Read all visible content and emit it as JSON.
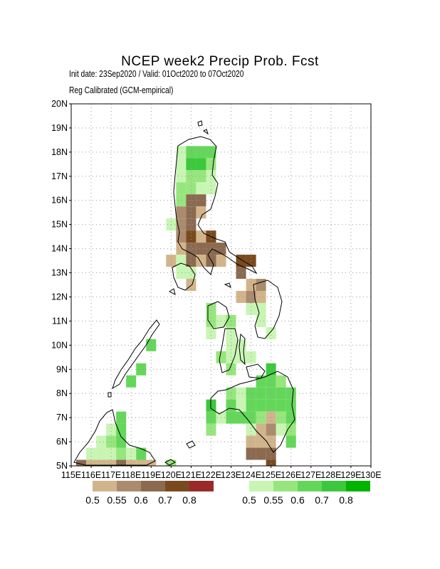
{
  "title": "NCEP week2 Precip Prob. Fcst",
  "subtitle1": "Init date: 23Sep2020 / Valid: 01Oct2020 to 07Oct2020",
  "subtitle2": "Reg Calibrated (GCM-empirical)",
  "lat_labels": [
    "20N",
    "19N",
    "18N",
    "17N",
    "16N",
    "15N",
    "14N",
    "13N",
    "12N",
    "11N",
    "10N",
    "9N",
    "8N",
    "7N",
    "6N",
    "5N"
  ],
  "lon_labels": [
    "115E",
    "116E",
    "117E",
    "118E",
    "119E",
    "120E",
    "121E",
    "122E",
    "123E",
    "124E",
    "125E",
    "126E",
    "127E",
    "128E",
    "129E",
    "130E"
  ],
  "legend_dry": {
    "colors": [
      "#d2b48c",
      "#aa8b6e",
      "#8b6a50",
      "#7a4a1e",
      "#9a2a2a"
    ],
    "labels": [
      "0.5",
      "0.55",
      "0.6",
      "0.7",
      "0.8"
    ]
  },
  "legend_wet": {
    "colors": [
      "#c8f5b4",
      "#96e67d",
      "#64d75a",
      "#3cc83c",
      "#00b400"
    ],
    "labels": [
      "0.5",
      "0.55",
      "0.6",
      "0.7",
      "0.8"
    ]
  },
  "cells": [
    {
      "lon": 120.5,
      "lat": 18.0,
      "level": "w1"
    },
    {
      "lon": 121.0,
      "lat": 18.0,
      "level": "w3"
    },
    {
      "lon": 121.5,
      "lat": 18.0,
      "level": "w3"
    },
    {
      "lon": 122.0,
      "lat": 18.0,
      "level": "w3"
    },
    {
      "lon": 120.5,
      "lat": 17.5,
      "level": "w1"
    },
    {
      "lon": 121.0,
      "lat": 17.5,
      "level": "w4"
    },
    {
      "lon": 121.5,
      "lat": 17.5,
      "level": "w4"
    },
    {
      "lon": 122.0,
      "lat": 17.5,
      "level": "w2"
    },
    {
      "lon": 120.5,
      "lat": 17.0,
      "level": "w1"
    },
    {
      "lon": 121.0,
      "lat": 17.0,
      "level": "w2"
    },
    {
      "lon": 121.5,
      "lat": 17.0,
      "level": "w2"
    },
    {
      "lon": 122.0,
      "lat": 17.0,
      "level": "w1"
    },
    {
      "lon": 120.5,
      "lat": 16.5,
      "level": "w2"
    },
    {
      "lon": 121.0,
      "lat": 16.5,
      "level": "w2"
    },
    {
      "lon": 121.5,
      "lat": 16.5,
      "level": "w1"
    },
    {
      "lon": 122.0,
      "lat": 16.5,
      "level": "w1"
    },
    {
      "lon": 120.5,
      "lat": 16.0,
      "level": "w2"
    },
    {
      "lon": 121.0,
      "lat": 16.0,
      "level": "d3"
    },
    {
      "lon": 121.5,
      "lat": 16.0,
      "level": "d3"
    },
    {
      "lon": 120.5,
      "lat": 15.5,
      "level": "d2"
    },
    {
      "lon": 121.0,
      "lat": 15.5,
      "level": "d3"
    },
    {
      "lon": 121.5,
      "lat": 15.5,
      "level": "d1"
    },
    {
      "lon": 120.0,
      "lat": 15.0,
      "level": "w1"
    },
    {
      "lon": 120.5,
      "lat": 15.0,
      "level": "d2"
    },
    {
      "lon": 121.0,
      "lat": 15.0,
      "level": "d3"
    },
    {
      "lon": 120.5,
      "lat": 14.5,
      "level": "d2"
    },
    {
      "lon": 121.0,
      "lat": 14.5,
      "level": "d4"
    },
    {
      "lon": 121.5,
      "lat": 14.5,
      "level": "d1"
    },
    {
      "lon": 122.0,
      "lat": 14.5,
      "level": "d4"
    },
    {
      "lon": 120.5,
      "lat": 14.0,
      "level": "d1"
    },
    {
      "lon": 121.0,
      "lat": 14.0,
      "level": "d3"
    },
    {
      "lon": 121.5,
      "lat": 14.0,
      "level": "d3"
    },
    {
      "lon": 122.0,
      "lat": 14.0,
      "level": "d3"
    },
    {
      "lon": 122.5,
      "lat": 14.0,
      "level": "d3"
    },
    {
      "lon": 120.0,
      "lat": 13.5,
      "level": "d1"
    },
    {
      "lon": 120.5,
      "lat": 13.5,
      "level": "w1"
    },
    {
      "lon": 121.0,
      "lat": 13.5,
      "level": "d3"
    },
    {
      "lon": 121.5,
      "lat": 13.5,
      "level": "d1"
    },
    {
      "lon": 122.0,
      "lat": 13.5,
      "level": "d3"
    },
    {
      "lon": 122.5,
      "lat": 13.5,
      "level": "d1"
    },
    {
      "lon": 123.5,
      "lat": 13.5,
      "level": "d4"
    },
    {
      "lon": 124.0,
      "lat": 13.5,
      "level": "d4"
    },
    {
      "lon": 120.5,
      "lat": 13.0,
      "level": "w1"
    },
    {
      "lon": 121.0,
      "lat": 13.0,
      "level": "w1"
    },
    {
      "lon": 123.5,
      "lat": 13.0,
      "level": "d3"
    },
    {
      "lon": 121.0,
      "lat": 12.5,
      "level": "d1"
    },
    {
      "lon": 124.0,
      "lat": 12.5,
      "level": "d1"
    },
    {
      "lon": 124.5,
      "lat": 12.5,
      "level": "d2"
    },
    {
      "lon": 123.5,
      "lat": 12.0,
      "level": "d1"
    },
    {
      "lon": 124.0,
      "lat": 12.0,
      "level": "d2"
    },
    {
      "lon": 124.5,
      "lat": 12.0,
      "level": "d1"
    },
    {
      "lon": 122.0,
      "lat": 11.5,
      "level": "w2"
    },
    {
      "lon": 124.0,
      "lat": 11.5,
      "level": "w1"
    },
    {
      "lon": 124.5,
      "lat": 11.5,
      "level": "w1"
    },
    {
      "lon": 122.0,
      "lat": 11.0,
      "level": "w2"
    },
    {
      "lon": 122.5,
      "lat": 11.0,
      "level": "w1"
    },
    {
      "lon": 123.0,
      "lat": 11.0,
      "level": "w2"
    },
    {
      "lon": 124.5,
      "lat": 11.0,
      "level": "w1"
    },
    {
      "lon": 122.0,
      "lat": 10.5,
      "level": "w1"
    },
    {
      "lon": 123.0,
      "lat": 10.5,
      "level": "w1"
    },
    {
      "lon": 125.0,
      "lat": 10.5,
      "level": "w1"
    },
    {
      "lon": 123.0,
      "lat": 10.0,
      "level": "w1"
    },
    {
      "lon": 123.5,
      "lat": 10.0,
      "level": "w1"
    },
    {
      "lon": 119.0,
      "lat": 10.0,
      "level": "w3"
    },
    {
      "lon": 122.5,
      "lat": 9.5,
      "level": "w2"
    },
    {
      "lon": 123.0,
      "lat": 9.5,
      "level": "w1"
    },
    {
      "lon": 123.5,
      "lat": 9.5,
      "level": "w1"
    },
    {
      "lon": 124.0,
      "lat": 9.5,
      "level": "w1"
    },
    {
      "lon": 118.5,
      "lat": 9.0,
      "level": "w3"
    },
    {
      "lon": 123.0,
      "lat": 9.0,
      "level": "w2"
    },
    {
      "lon": 125.0,
      "lat": 9.0,
      "level": "w4"
    },
    {
      "lon": 118.0,
      "lat": 8.5,
      "level": "w3"
    },
    {
      "lon": 124.5,
      "lat": 8.5,
      "level": "w3"
    },
    {
      "lon": 125.0,
      "lat": 8.5,
      "level": "w3"
    },
    {
      "lon": 125.5,
      "lat": 8.5,
      "level": "w2"
    },
    {
      "lon": 123.0,
      "lat": 8.0,
      "level": "w2"
    },
    {
      "lon": 123.5,
      "lat": 8.0,
      "level": "w1"
    },
    {
      "lon": 124.0,
      "lat": 8.0,
      "level": "w3"
    },
    {
      "lon": 124.5,
      "lat": 8.0,
      "level": "w3"
    },
    {
      "lon": 125.0,
      "lat": 8.0,
      "level": "w3"
    },
    {
      "lon": 125.5,
      "lat": 8.0,
      "level": "w3"
    },
    {
      "lon": 126.0,
      "lat": 8.0,
      "level": "w3"
    },
    {
      "lon": 122.0,
      "lat": 7.5,
      "level": "w4"
    },
    {
      "lon": 123.0,
      "lat": 7.5,
      "level": "w3"
    },
    {
      "lon": 123.5,
      "lat": 7.5,
      "level": "w1"
    },
    {
      "lon": 124.0,
      "lat": 7.5,
      "level": "w3"
    },
    {
      "lon": 124.5,
      "lat": 7.5,
      "level": "w3"
    },
    {
      "lon": 125.0,
      "lat": 7.5,
      "level": "w3"
    },
    {
      "lon": 125.5,
      "lat": 7.5,
      "level": "w3"
    },
    {
      "lon": 126.0,
      "lat": 7.5,
      "level": "w3"
    },
    {
      "lon": 122.0,
      "lat": 7.0,
      "level": "w3"
    },
    {
      "lon": 122.5,
      "lat": 7.0,
      "level": "w1"
    },
    {
      "lon": 123.0,
      "lat": 7.0,
      "level": "w3"
    },
    {
      "lon": 123.5,
      "lat": 7.0,
      "level": "w3"
    },
    {
      "lon": 124.0,
      "lat": 7.0,
      "level": "w3"
    },
    {
      "lon": 124.5,
      "lat": 7.0,
      "level": "w2"
    },
    {
      "lon": 125.0,
      "lat": 7.0,
      "level": "d1"
    },
    {
      "lon": 125.5,
      "lat": 7.0,
      "level": "w2"
    },
    {
      "lon": 126.0,
      "lat": 7.0,
      "level": "w3"
    },
    {
      "lon": 117.5,
      "lat": 7.0,
      "level": "w3"
    },
    {
      "lon": 122.0,
      "lat": 6.5,
      "level": "w2"
    },
    {
      "lon": 124.0,
      "lat": 6.5,
      "level": "w1"
    },
    {
      "lon": 124.5,
      "lat": 6.5,
      "level": "d1"
    },
    {
      "lon": 125.0,
      "lat": 6.5,
      "level": "d2"
    },
    {
      "lon": 125.5,
      "lat": 6.5,
      "level": "w1"
    },
    {
      "lon": 126.0,
      "lat": 6.5,
      "level": "w2"
    },
    {
      "lon": 117.0,
      "lat": 6.5,
      "level": "w1"
    },
    {
      "lon": 117.5,
      "lat": 6.5,
      "level": "w3"
    },
    {
      "lon": 124.0,
      "lat": 6.0,
      "level": "d1"
    },
    {
      "lon": 124.5,
      "lat": 6.0,
      "level": "d1"
    },
    {
      "lon": 125.0,
      "lat": 6.0,
      "level": "d1"
    },
    {
      "lon": 126.0,
      "lat": 6.0,
      "level": "w3"
    },
    {
      "lon": 116.5,
      "lat": 6.0,
      "level": "w1"
    },
    {
      "lon": 117.0,
      "lat": 6.0,
      "level": "w2"
    },
    {
      "lon": 117.5,
      "lat": 6.0,
      "level": "w3"
    },
    {
      "lon": 124.0,
      "lat": 5.5,
      "level": "d3"
    },
    {
      "lon": 124.5,
      "lat": 5.5,
      "level": "d3"
    },
    {
      "lon": 125.0,
      "lat": 5.5,
      "level": "d3"
    },
    {
      "lon": 116.0,
      "lat": 5.5,
      "level": "w1"
    },
    {
      "lon": 116.5,
      "lat": 5.5,
      "level": "w1"
    },
    {
      "lon": 117.0,
      "lat": 5.5,
      "level": "w1"
    },
    {
      "lon": 117.5,
      "lat": 5.5,
      "level": "w2"
    },
    {
      "lon": 118.0,
      "lat": 5.5,
      "level": "w1"
    },
    {
      "lon": 118.5,
      "lat": 5.5,
      "level": "w3"
    },
    {
      "lon": 125.0,
      "lat": 5.0,
      "level": "d4"
    },
    {
      "lon": 115.5,
      "lat": 5.0,
      "level": "d3"
    },
    {
      "lon": 116.0,
      "lat": 5.0,
      "level": "d1"
    },
    {
      "lon": 116.5,
      "lat": 5.0,
      "level": "d1"
    },
    {
      "lon": 117.0,
      "lat": 5.0,
      "level": "d1"
    },
    {
      "lon": 117.5,
      "lat": 5.0,
      "level": "d3"
    },
    {
      "lon": 118.0,
      "lat": 5.0,
      "level": "d1"
    },
    {
      "lon": 118.5,
      "lat": 5.0,
      "level": "d1"
    },
    {
      "lon": 119.0,
      "lat": 5.0,
      "level": "d1"
    },
    {
      "lon": 120.0,
      "lat": 5.0,
      "level": "w2"
    }
  ]
}
